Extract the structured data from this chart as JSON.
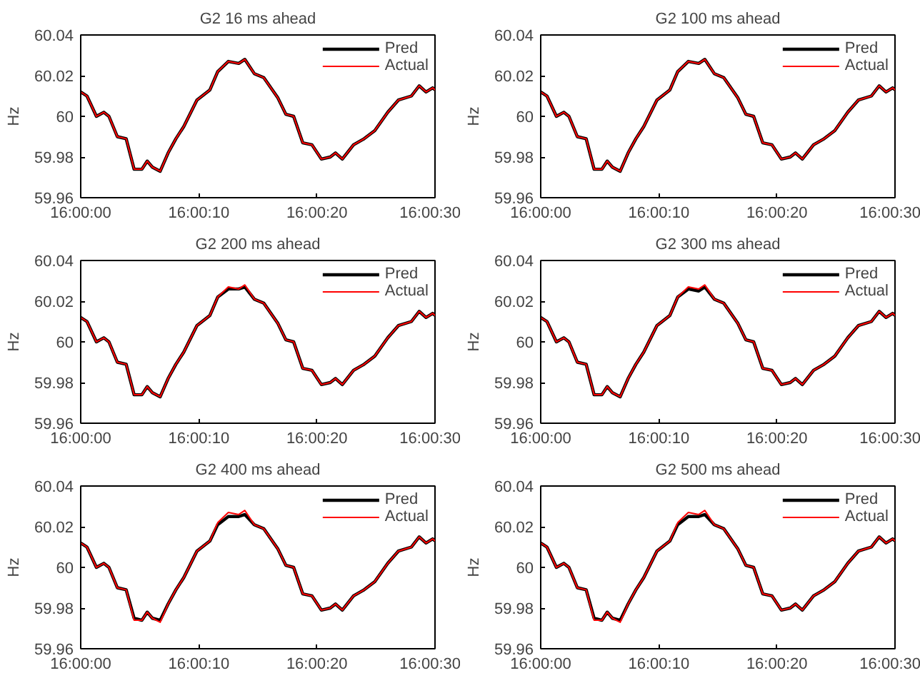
{
  "chart_data": [
    {
      "type": "line",
      "title": "G2 16 ms ahead",
      "ylabel": "Hz",
      "legend": "top right",
      "line_style": "solid",
      "marker": "none",
      "x": [
        16.0,
        16.000147,
        16.000369,
        16.000542,
        16.000664,
        16.000861,
        16.001069,
        16.001256,
        16.001439,
        16.001564,
        16.001686,
        16.001869,
        16.002056,
        16.002239,
        16.002425,
        16.002733,
        16.003039,
        16.003222,
        16.003472,
        16.003717,
        16.003861,
        16.004083,
        16.004306,
        16.004639,
        16.004825,
        16.005008,
        16.005222,
        16.005439,
        16.005661,
        16.005869,
        16.005994,
        16.006153,
        16.006417,
        16.006667,
        16.006917,
        16.007222,
        16.007472,
        16.007778,
        16.007961,
        16.008122,
        16.008278,
        16.008333
      ],
      "xlim": [
        16.0,
        16.008333
      ],
      "xticks": [
        {
          "value": 16.0,
          "label": "16:00:00"
        },
        {
          "value": 16.002778,
          "label": "16:00:10"
        },
        {
          "value": 16.005556,
          "label": "16:00:20"
        },
        {
          "value": 16.008333,
          "label": "16:00:30"
        }
      ],
      "ylim": [
        59.96,
        60.04
      ],
      "yticks": [
        59.96,
        59.98,
        60,
        60.02,
        60.04
      ],
      "series": [
        {
          "name": "Pred",
          "color": "#000000",
          "values": [
            60.012,
            60.01,
            60.0,
            60.002,
            60.0,
            59.99,
            59.989,
            59.974,
            59.974,
            59.978,
            59.975,
            59.973,
            59.982,
            59.989,
            59.995,
            60.008,
            60.013,
            60.022,
            60.027,
            60.026,
            60.028,
            60.021,
            60.019,
            60.009,
            60.001,
            60.0,
            59.987,
            59.986,
            59.979,
            59.98,
            59.982,
            59.979,
            59.986,
            59.989,
            59.993,
            60.002,
            60.008,
            60.01,
            60.015,
            60.012,
            60.014,
            60.013
          ]
        },
        {
          "name": "Actual",
          "color": "#ff0000",
          "values": [
            60.012,
            60.01,
            60.0,
            60.002,
            60.0,
            59.99,
            59.989,
            59.974,
            59.974,
            59.978,
            59.975,
            59.973,
            59.982,
            59.989,
            59.995,
            60.008,
            60.013,
            60.022,
            60.027,
            60.026,
            60.028,
            60.021,
            60.019,
            60.009,
            60.001,
            60.0,
            59.987,
            59.986,
            59.979,
            59.98,
            59.982,
            59.979,
            59.986,
            59.989,
            59.993,
            60.002,
            60.008,
            60.01,
            60.015,
            60.012,
            60.014,
            60.013
          ]
        }
      ]
    },
    {
      "type": "line",
      "title": "G2 100 ms ahead",
      "ylabel": "Hz",
      "legend": "top right",
      "line_style": "solid",
      "marker": "none",
      "x": [
        16.0,
        16.000147,
        16.000369,
        16.000542,
        16.000664,
        16.000861,
        16.001069,
        16.001256,
        16.001439,
        16.001564,
        16.001686,
        16.001869,
        16.002056,
        16.002239,
        16.002425,
        16.002733,
        16.003039,
        16.003222,
        16.003472,
        16.003717,
        16.003861,
        16.004083,
        16.004306,
        16.004639,
        16.004825,
        16.005008,
        16.005222,
        16.005439,
        16.005661,
        16.005869,
        16.005994,
        16.006153,
        16.006417,
        16.006667,
        16.006917,
        16.007222,
        16.007472,
        16.007778,
        16.007961,
        16.008122,
        16.008278,
        16.008333
      ],
      "xlim": [
        16.0,
        16.008333
      ],
      "xticks": [
        {
          "value": 16.0,
          "label": "16:00:00"
        },
        {
          "value": 16.002778,
          "label": "16:00:10"
        },
        {
          "value": 16.005556,
          "label": "16:00:20"
        },
        {
          "value": 16.008333,
          "label": "16:00:30"
        }
      ],
      "ylim": [
        59.96,
        60.04
      ],
      "yticks": [
        59.96,
        59.98,
        60,
        60.02,
        60.04
      ],
      "series": [
        {
          "name": "Pred",
          "color": "#000000",
          "values": [
            60.012,
            60.01,
            60.0,
            60.002,
            60.0,
            59.99,
            59.989,
            59.974,
            59.974,
            59.978,
            59.975,
            59.973,
            59.982,
            59.989,
            59.995,
            60.008,
            60.013,
            60.022,
            60.027,
            60.026,
            60.028,
            60.021,
            60.019,
            60.009,
            60.001,
            60.0,
            59.987,
            59.986,
            59.979,
            59.98,
            59.982,
            59.979,
            59.986,
            59.989,
            59.993,
            60.002,
            60.008,
            60.01,
            60.015,
            60.012,
            60.014,
            60.013
          ]
        },
        {
          "name": "Actual",
          "color": "#ff0000",
          "values": [
            60.012,
            60.01,
            60.0,
            60.002,
            60.0,
            59.99,
            59.989,
            59.974,
            59.974,
            59.978,
            59.975,
            59.973,
            59.982,
            59.989,
            59.995,
            60.008,
            60.013,
            60.022,
            60.027,
            60.026,
            60.028,
            60.021,
            60.019,
            60.009,
            60.001,
            60.0,
            59.987,
            59.986,
            59.979,
            59.98,
            59.982,
            59.979,
            59.986,
            59.989,
            59.993,
            60.002,
            60.008,
            60.01,
            60.015,
            60.012,
            60.014,
            60.013
          ]
        }
      ]
    },
    {
      "type": "line",
      "title": "G2 200 ms ahead",
      "ylabel": "Hz",
      "legend": "top right",
      "line_style": "solid",
      "marker": "none",
      "x": [
        16.0,
        16.000147,
        16.000369,
        16.000542,
        16.000664,
        16.000861,
        16.001069,
        16.001256,
        16.001439,
        16.001564,
        16.001686,
        16.001869,
        16.002056,
        16.002239,
        16.002425,
        16.002733,
        16.003039,
        16.003222,
        16.003472,
        16.003717,
        16.003861,
        16.004083,
        16.004306,
        16.004639,
        16.004825,
        16.005008,
        16.005222,
        16.005439,
        16.005661,
        16.005869,
        16.005994,
        16.006153,
        16.006417,
        16.006667,
        16.006917,
        16.007222,
        16.007472,
        16.007778,
        16.007961,
        16.008122,
        16.008278,
        16.008333
      ],
      "xlim": [
        16.0,
        16.008333
      ],
      "xticks": [
        {
          "value": 16.0,
          "label": "16:00:00"
        },
        {
          "value": 16.002778,
          "label": "16:00:10"
        },
        {
          "value": 16.005556,
          "label": "16:00:20"
        },
        {
          "value": 16.008333,
          "label": "16:00:30"
        }
      ],
      "ylim": [
        59.96,
        60.04
      ],
      "yticks": [
        59.96,
        59.98,
        60,
        60.02,
        60.04
      ],
      "series": [
        {
          "name": "Pred",
          "color": "#000000",
          "values": [
            60.012,
            60.01,
            60.0,
            60.002,
            60.0,
            59.99,
            59.989,
            59.974,
            59.974,
            59.978,
            59.975,
            59.973,
            59.982,
            59.989,
            59.995,
            60.008,
            60.013,
            60.022,
            60.026,
            60.026,
            60.027,
            60.021,
            60.019,
            60.009,
            60.001,
            60.0,
            59.987,
            59.986,
            59.979,
            59.98,
            59.982,
            59.979,
            59.986,
            59.989,
            59.993,
            60.002,
            60.008,
            60.01,
            60.015,
            60.012,
            60.014,
            60.013
          ]
        },
        {
          "name": "Actual",
          "color": "#ff0000",
          "values": [
            60.012,
            60.01,
            60.0,
            60.002,
            60.0,
            59.99,
            59.989,
            59.974,
            59.974,
            59.978,
            59.975,
            59.973,
            59.982,
            59.989,
            59.995,
            60.008,
            60.013,
            60.022,
            60.027,
            60.026,
            60.028,
            60.021,
            60.019,
            60.009,
            60.001,
            60.0,
            59.987,
            59.986,
            59.979,
            59.98,
            59.982,
            59.979,
            59.986,
            59.989,
            59.993,
            60.002,
            60.008,
            60.01,
            60.015,
            60.012,
            60.014,
            60.013
          ]
        }
      ]
    },
    {
      "type": "line",
      "title": "G2 300 ms ahead",
      "ylabel": "Hz",
      "legend": "top right",
      "line_style": "solid",
      "marker": "none",
      "x": [
        16.0,
        16.000147,
        16.000369,
        16.000542,
        16.000664,
        16.000861,
        16.001069,
        16.001256,
        16.001439,
        16.001564,
        16.001686,
        16.001869,
        16.002056,
        16.002239,
        16.002425,
        16.002733,
        16.003039,
        16.003222,
        16.003472,
        16.003717,
        16.003861,
        16.004083,
        16.004306,
        16.004639,
        16.004825,
        16.005008,
        16.005222,
        16.005439,
        16.005661,
        16.005869,
        16.005994,
        16.006153,
        16.006417,
        16.006667,
        16.006917,
        16.007222,
        16.007472,
        16.007778,
        16.007961,
        16.008122,
        16.008278,
        16.008333
      ],
      "xlim": [
        16.0,
        16.008333
      ],
      "xticks": [
        {
          "value": 16.0,
          "label": "16:00:00"
        },
        {
          "value": 16.002778,
          "label": "16:00:10"
        },
        {
          "value": 16.005556,
          "label": "16:00:20"
        },
        {
          "value": 16.008333,
          "label": "16:00:30"
        }
      ],
      "ylim": [
        59.96,
        60.04
      ],
      "yticks": [
        59.96,
        59.98,
        60,
        60.02,
        60.04
      ],
      "series": [
        {
          "name": "Pred",
          "color": "#000000",
          "values": [
            60.012,
            60.01,
            60.0,
            60.002,
            60.0,
            59.99,
            59.989,
            59.974,
            59.974,
            59.978,
            59.975,
            59.973,
            59.982,
            59.989,
            59.995,
            60.008,
            60.013,
            60.022,
            60.026,
            60.025,
            60.027,
            60.021,
            60.019,
            60.009,
            60.001,
            60.0,
            59.987,
            59.986,
            59.979,
            59.98,
            59.982,
            59.979,
            59.986,
            59.989,
            59.993,
            60.002,
            60.008,
            60.01,
            60.015,
            60.012,
            60.014,
            60.013
          ]
        },
        {
          "name": "Actual",
          "color": "#ff0000",
          "values": [
            60.012,
            60.01,
            60.0,
            60.002,
            60.0,
            59.99,
            59.989,
            59.974,
            59.974,
            59.978,
            59.975,
            59.973,
            59.982,
            59.989,
            59.995,
            60.008,
            60.013,
            60.022,
            60.027,
            60.026,
            60.028,
            60.021,
            60.019,
            60.009,
            60.001,
            60.0,
            59.987,
            59.986,
            59.979,
            59.98,
            59.982,
            59.979,
            59.986,
            59.989,
            59.993,
            60.002,
            60.008,
            60.01,
            60.015,
            60.012,
            60.014,
            60.013
          ]
        }
      ]
    },
    {
      "type": "line",
      "title": "G2 400 ms ahead",
      "ylabel": "Hz",
      "legend": "top right",
      "line_style": "solid",
      "marker": "none",
      "x": [
        16.0,
        16.000147,
        16.000369,
        16.000542,
        16.000664,
        16.000861,
        16.001069,
        16.001256,
        16.001439,
        16.001564,
        16.001686,
        16.001869,
        16.002056,
        16.002239,
        16.002425,
        16.002733,
        16.003039,
        16.003222,
        16.003472,
        16.003717,
        16.003861,
        16.004083,
        16.004306,
        16.004639,
        16.004825,
        16.005008,
        16.005222,
        16.005439,
        16.005661,
        16.005869,
        16.005994,
        16.006153,
        16.006417,
        16.006667,
        16.006917,
        16.007222,
        16.007472,
        16.007778,
        16.007961,
        16.008122,
        16.008278,
        16.008333
      ],
      "xlim": [
        16.0,
        16.008333
      ],
      "xticks": [
        {
          "value": 16.0,
          "label": "16:00:00"
        },
        {
          "value": 16.002778,
          "label": "16:00:10"
        },
        {
          "value": 16.005556,
          "label": "16:00:20"
        },
        {
          "value": 16.008333,
          "label": "16:00:30"
        }
      ],
      "ylim": [
        59.96,
        60.04
      ],
      "yticks": [
        59.96,
        59.98,
        60,
        60.02,
        60.04
      ],
      "series": [
        {
          "name": "Pred",
          "color": "#000000",
          "values": [
            60.012,
            60.01,
            60.0,
            60.002,
            60.0,
            59.99,
            59.989,
            59.975,
            59.974,
            59.978,
            59.975,
            59.974,
            59.982,
            59.989,
            59.995,
            60.008,
            60.013,
            60.021,
            60.025,
            60.025,
            60.026,
            60.021,
            60.019,
            60.009,
            60.001,
            60.0,
            59.987,
            59.986,
            59.979,
            59.98,
            59.982,
            59.979,
            59.986,
            59.989,
            59.993,
            60.002,
            60.008,
            60.01,
            60.015,
            60.012,
            60.014,
            60.013
          ]
        },
        {
          "name": "Actual",
          "color": "#ff0000",
          "values": [
            60.012,
            60.01,
            60.0,
            60.002,
            60.0,
            59.99,
            59.989,
            59.974,
            59.974,
            59.978,
            59.975,
            59.973,
            59.982,
            59.989,
            59.995,
            60.008,
            60.013,
            60.022,
            60.027,
            60.026,
            60.028,
            60.021,
            60.019,
            60.009,
            60.001,
            60.0,
            59.987,
            59.986,
            59.979,
            59.98,
            59.982,
            59.979,
            59.986,
            59.989,
            59.993,
            60.002,
            60.008,
            60.01,
            60.015,
            60.012,
            60.014,
            60.013
          ]
        }
      ]
    },
    {
      "type": "line",
      "title": "G2 500 ms ahead",
      "ylabel": "Hz",
      "legend": "top right",
      "line_style": "solid",
      "marker": "none",
      "x": [
        16.0,
        16.000147,
        16.000369,
        16.000542,
        16.000664,
        16.000861,
        16.001069,
        16.001256,
        16.001439,
        16.001564,
        16.001686,
        16.001869,
        16.002056,
        16.002239,
        16.002425,
        16.002733,
        16.003039,
        16.003222,
        16.003472,
        16.003717,
        16.003861,
        16.004083,
        16.004306,
        16.004639,
        16.004825,
        16.005008,
        16.005222,
        16.005439,
        16.005661,
        16.005869,
        16.005994,
        16.006153,
        16.006417,
        16.006667,
        16.006917,
        16.007222,
        16.007472,
        16.007778,
        16.007961,
        16.008122,
        16.008278,
        16.008333
      ],
      "xlim": [
        16.0,
        16.008333
      ],
      "xticks": [
        {
          "value": 16.0,
          "label": "16:00:00"
        },
        {
          "value": 16.002778,
          "label": "16:00:10"
        },
        {
          "value": 16.005556,
          "label": "16:00:20"
        },
        {
          "value": 16.008333,
          "label": "16:00:30"
        }
      ],
      "ylim": [
        59.96,
        60.04
      ],
      "yticks": [
        59.96,
        59.98,
        60,
        60.02,
        60.04
      ],
      "series": [
        {
          "name": "Pred",
          "color": "#000000",
          "values": [
            60.012,
            60.01,
            60.0,
            60.002,
            60.0,
            59.99,
            59.989,
            59.975,
            59.974,
            59.978,
            59.975,
            59.974,
            59.982,
            59.989,
            59.995,
            60.008,
            60.013,
            60.021,
            60.025,
            60.025,
            60.026,
            60.021,
            60.019,
            60.009,
            60.001,
            60.0,
            59.987,
            59.986,
            59.979,
            59.98,
            59.982,
            59.979,
            59.986,
            59.989,
            59.993,
            60.002,
            60.008,
            60.01,
            60.015,
            60.012,
            60.014,
            60.013
          ]
        },
        {
          "name": "Actual",
          "color": "#ff0000",
          "values": [
            60.012,
            60.01,
            60.0,
            60.002,
            60.0,
            59.99,
            59.989,
            59.974,
            59.974,
            59.978,
            59.975,
            59.973,
            59.982,
            59.989,
            59.995,
            60.008,
            60.013,
            60.022,
            60.027,
            60.026,
            60.028,
            60.021,
            60.019,
            60.009,
            60.001,
            60.0,
            59.987,
            59.986,
            59.979,
            59.98,
            59.982,
            59.979,
            59.986,
            59.989,
            59.993,
            60.002,
            60.008,
            60.01,
            60.015,
            60.012,
            60.014,
            60.013
          ]
        }
      ]
    }
  ]
}
